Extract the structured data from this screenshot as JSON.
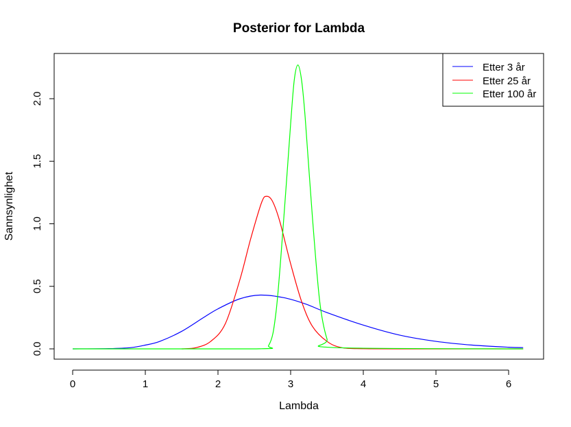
{
  "chart_data": {
    "type": "line",
    "title": "Posterior for Lambda",
    "xlabel": "Lambda",
    "ylabel": "Sannsynlighet",
    "xlim": [
      0,
      6.2
    ],
    "ylim": [
      0,
      2.27
    ],
    "x_ticks": [
      0,
      1,
      2,
      3,
      4,
      5,
      6
    ],
    "x_tick_labels": [
      "0",
      "1",
      "2",
      "3",
      "4",
      "5",
      "6"
    ],
    "y_ticks": [
      0,
      0.5,
      1,
      1.5,
      2
    ],
    "y_tick_labels": [
      "0.0",
      "0.5",
      "1.0",
      "1.5",
      "2.0"
    ],
    "grid": false,
    "legend_position": "top-right",
    "series": [
      {
        "name": "Etter 3 år",
        "color": "#0000ff",
        "x": [
          0,
          0.5,
          0.8,
          1.0,
          1.2,
          1.5,
          1.8,
          2.0,
          2.3,
          2.58,
          2.9,
          3.2,
          3.5,
          4.0,
          4.5,
          5.0,
          5.5,
          6.0,
          6.2
        ],
        "y": [
          0,
          0.002,
          0.01,
          0.03,
          0.06,
          0.14,
          0.25,
          0.32,
          0.4,
          0.43,
          0.41,
          0.36,
          0.29,
          0.19,
          0.11,
          0.06,
          0.03,
          0.013,
          0.01
        ]
      },
      {
        "name": "Etter 25 år",
        "color": "#ff0000",
        "x": [
          1.5,
          1.7,
          1.9,
          2.1,
          2.3,
          2.45,
          2.6,
          2.67,
          2.75,
          2.85,
          3.0,
          3.15,
          3.3,
          3.5,
          3.7,
          4.0,
          4.5,
          6.2
        ],
        "y": [
          0,
          0.01,
          0.06,
          0.2,
          0.55,
          0.88,
          1.17,
          1.22,
          1.18,
          1.02,
          0.68,
          0.38,
          0.18,
          0.06,
          0.01,
          0.001,
          0,
          0
        ]
      },
      {
        "name": "Etter 100 år",
        "color": "#00ff00",
        "x": [
          0,
          2.5,
          2.7,
          2.8,
          2.9,
          3.0,
          3.05,
          3.1,
          3.15,
          3.2,
          3.3,
          3.4,
          3.5,
          3.6,
          6.2
        ],
        "y": [
          0,
          0,
          0.03,
          0.3,
          1.0,
          1.8,
          2.15,
          2.27,
          2.15,
          1.85,
          1.05,
          0.38,
          0.08,
          0.01,
          0
        ]
      }
    ]
  }
}
